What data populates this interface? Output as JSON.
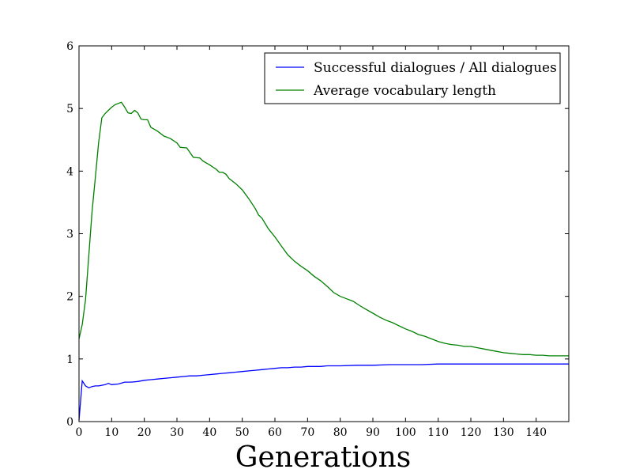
{
  "chart_data": {
    "type": "line",
    "title": "",
    "xlabel": "Generations",
    "ylabel": "",
    "xlim": [
      0,
      150
    ],
    "ylim": [
      0,
      6
    ],
    "xticks": [
      0,
      10,
      20,
      30,
      40,
      50,
      60,
      70,
      80,
      90,
      100,
      110,
      120,
      130,
      140
    ],
    "yticks": [
      0,
      1,
      2,
      3,
      4,
      5,
      6
    ],
    "grid": false,
    "legend_position": "top-right",
    "series": [
      {
        "name": "Successful dialogues / All dialogues",
        "color": "#0000ff",
        "points": [
          [
            0,
            0.02
          ],
          [
            1,
            0.65
          ],
          [
            2,
            0.57
          ],
          [
            3,
            0.54
          ],
          [
            4,
            0.56
          ],
          [
            5,
            0.57
          ],
          [
            6,
            0.57
          ],
          [
            7,
            0.58
          ],
          [
            8,
            0.59
          ],
          [
            9,
            0.61
          ],
          [
            10,
            0.59
          ],
          [
            12,
            0.6
          ],
          [
            14,
            0.63
          ],
          [
            16,
            0.63
          ],
          [
            18,
            0.64
          ],
          [
            20,
            0.66
          ],
          [
            22,
            0.67
          ],
          [
            24,
            0.68
          ],
          [
            26,
            0.69
          ],
          [
            28,
            0.7
          ],
          [
            30,
            0.71
          ],
          [
            32,
            0.72
          ],
          [
            34,
            0.73
          ],
          [
            36,
            0.73
          ],
          [
            38,
            0.74
          ],
          [
            40,
            0.75
          ],
          [
            42,
            0.76
          ],
          [
            44,
            0.77
          ],
          [
            46,
            0.78
          ],
          [
            48,
            0.79
          ],
          [
            50,
            0.8
          ],
          [
            52,
            0.81
          ],
          [
            54,
            0.82
          ],
          [
            56,
            0.83
          ],
          [
            58,
            0.84
          ],
          [
            60,
            0.85
          ],
          [
            62,
            0.86
          ],
          [
            64,
            0.86
          ],
          [
            66,
            0.87
          ],
          [
            68,
            0.87
          ],
          [
            70,
            0.88
          ],
          [
            72,
            0.88
          ],
          [
            74,
            0.88
          ],
          [
            76,
            0.89
          ],
          [
            78,
            0.89
          ],
          [
            80,
            0.89
          ],
          [
            85,
            0.9
          ],
          [
            90,
            0.9
          ],
          [
            95,
            0.91
          ],
          [
            100,
            0.91
          ],
          [
            105,
            0.91
          ],
          [
            110,
            0.92
          ],
          [
            115,
            0.92
          ],
          [
            120,
            0.92
          ],
          [
            125,
            0.92
          ],
          [
            130,
            0.92
          ],
          [
            135,
            0.92
          ],
          [
            140,
            0.92
          ],
          [
            145,
            0.92
          ],
          [
            150,
            0.92
          ]
        ]
      },
      {
        "name": "Average vocabulary length",
        "color": "#008000",
        "points": [
          [
            0,
            1.32
          ],
          [
            1,
            1.55
          ],
          [
            2,
            1.95
          ],
          [
            3,
            2.65
          ],
          [
            4,
            3.35
          ],
          [
            5,
            3.9
          ],
          [
            6,
            4.45
          ],
          [
            7,
            4.85
          ],
          [
            8,
            4.92
          ],
          [
            9,
            4.97
          ],
          [
            10,
            5.02
          ],
          [
            11,
            5.06
          ],
          [
            12,
            5.08
          ],
          [
            13,
            5.1
          ],
          [
            14,
            5.02
          ],
          [
            15,
            4.93
          ],
          [
            16,
            4.92
          ],
          [
            17,
            4.97
          ],
          [
            18,
            4.93
          ],
          [
            19,
            4.83
          ],
          [
            20,
            4.82
          ],
          [
            21,
            4.82
          ],
          [
            22,
            4.7
          ],
          [
            24,
            4.64
          ],
          [
            26,
            4.56
          ],
          [
            28,
            4.52
          ],
          [
            30,
            4.45
          ],
          [
            31,
            4.38
          ],
          [
            33,
            4.37
          ],
          [
            35,
            4.22
          ],
          [
            37,
            4.21
          ],
          [
            38,
            4.16
          ],
          [
            40,
            4.1
          ],
          [
            42,
            4.03
          ],
          [
            43,
            3.98
          ],
          [
            44,
            3.98
          ],
          [
            45,
            3.95
          ],
          [
            46,
            3.88
          ],
          [
            48,
            3.8
          ],
          [
            50,
            3.7
          ],
          [
            52,
            3.56
          ],
          [
            54,
            3.4
          ],
          [
            55,
            3.3
          ],
          [
            56,
            3.25
          ],
          [
            58,
            3.08
          ],
          [
            60,
            2.95
          ],
          [
            62,
            2.8
          ],
          [
            64,
            2.66
          ],
          [
            66,
            2.56
          ],
          [
            68,
            2.48
          ],
          [
            70,
            2.41
          ],
          [
            72,
            2.32
          ],
          [
            74,
            2.25
          ],
          [
            76,
            2.16
          ],
          [
            78,
            2.06
          ],
          [
            80,
            2.0
          ],
          [
            82,
            1.96
          ],
          [
            84,
            1.92
          ],
          [
            86,
            1.85
          ],
          [
            88,
            1.79
          ],
          [
            90,
            1.73
          ],
          [
            92,
            1.67
          ],
          [
            94,
            1.62
          ],
          [
            96,
            1.58
          ],
          [
            98,
            1.53
          ],
          [
            100,
            1.48
          ],
          [
            102,
            1.44
          ],
          [
            104,
            1.39
          ],
          [
            106,
            1.36
          ],
          [
            108,
            1.32
          ],
          [
            110,
            1.28
          ],
          [
            112,
            1.25
          ],
          [
            114,
            1.23
          ],
          [
            116,
            1.22
          ],
          [
            118,
            1.2
          ],
          [
            120,
            1.2
          ],
          [
            122,
            1.18
          ],
          [
            124,
            1.16
          ],
          [
            126,
            1.14
          ],
          [
            128,
            1.12
          ],
          [
            130,
            1.1
          ],
          [
            132,
            1.09
          ],
          [
            134,
            1.08
          ],
          [
            136,
            1.07
          ],
          [
            138,
            1.07
          ],
          [
            140,
            1.06
          ],
          [
            142,
            1.06
          ],
          [
            144,
            1.05
          ],
          [
            146,
            1.05
          ],
          [
            148,
            1.05
          ],
          [
            150,
            1.05
          ]
        ]
      }
    ]
  }
}
